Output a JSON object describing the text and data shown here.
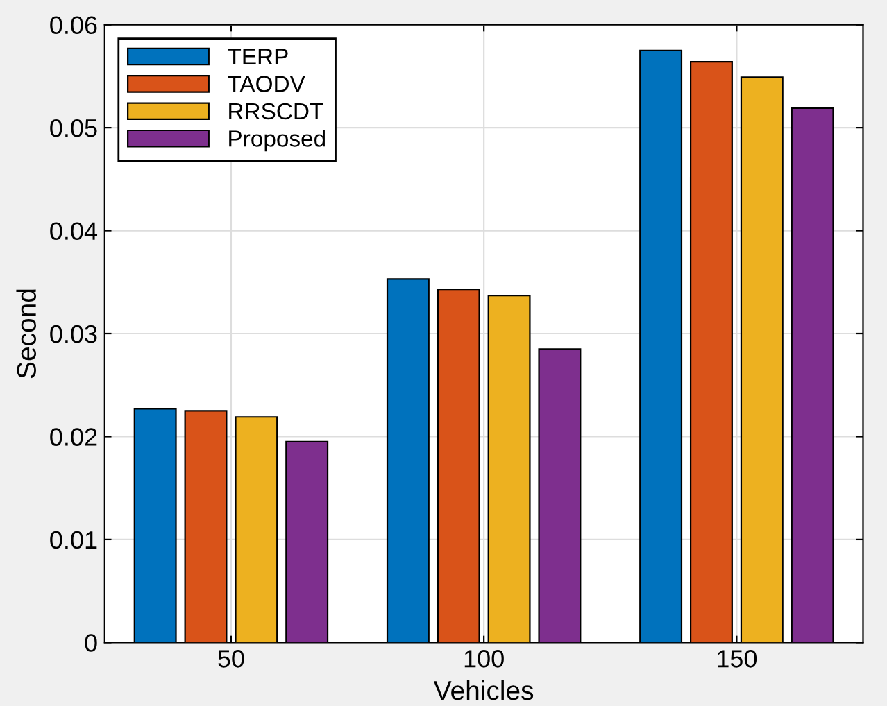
{
  "chart_data": {
    "type": "bar",
    "xlabel": "Vehicles",
    "ylabel": "Second",
    "categories": [
      "50",
      "100",
      "150"
    ],
    "series": [
      {
        "name": "TERP",
        "color": "#0072bd",
        "values": [
          0.0227,
          0.0353,
          0.0575
        ]
      },
      {
        "name": "TAODV",
        "color": "#d95319",
        "values": [
          0.0225,
          0.0343,
          0.0564
        ]
      },
      {
        "name": "RRSCDT",
        "color": "#edb120",
        "values": [
          0.0219,
          0.0337,
          0.0549
        ]
      },
      {
        "name": "Proposed",
        "color": "#7e2f8e",
        "values": [
          0.0195,
          0.0285,
          0.0519
        ]
      }
    ],
    "ylim": [
      0,
      0.06
    ],
    "yticks": [
      0,
      0.01,
      0.02,
      0.03,
      0.04,
      0.05,
      0.06
    ],
    "grid": true,
    "legend": "top left"
  }
}
